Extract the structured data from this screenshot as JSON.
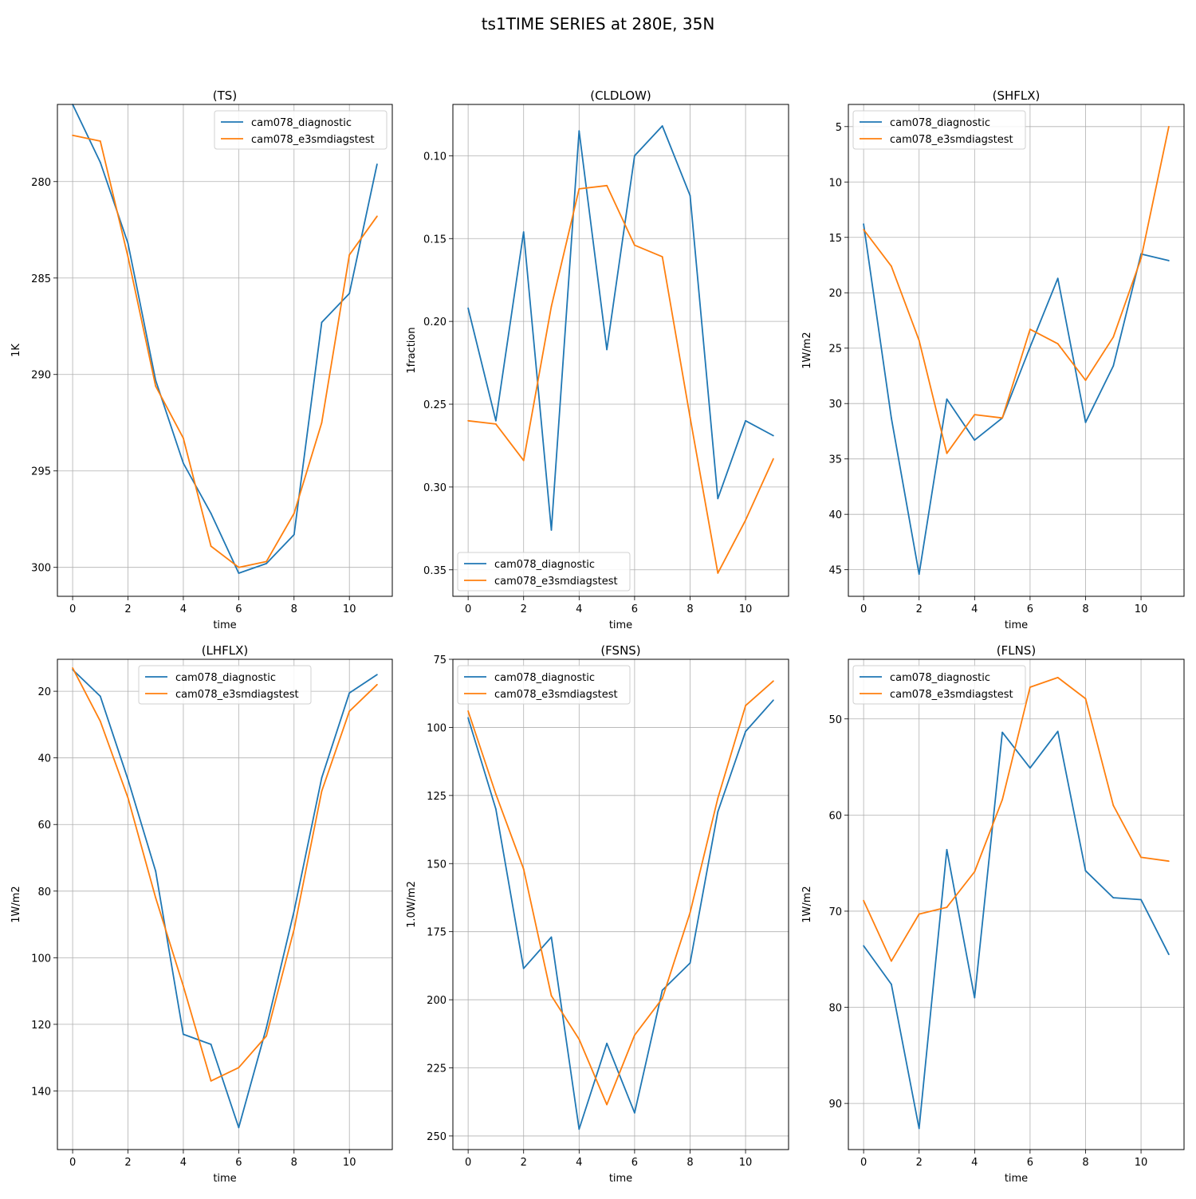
{
  "figure": {
    "title": "ts1TIME SERIES at 280E, 35N"
  },
  "colors": {
    "series_1": "#1f77b4",
    "series_2": "#ff7f0e",
    "grid": "#b0b0b0"
  },
  "chart_data": [
    {
      "type": "line",
      "title": "(TS)",
      "xlabel": "time",
      "ylabel": "1K",
      "xlim": [
        -0.55,
        11.55
      ],
      "ylim": [
        276.0,
        301.5
      ],
      "y_inverted": true,
      "xticks": [
        0,
        2,
        4,
        6,
        8,
        10
      ],
      "yticks": [
        275,
        280,
        285,
        290,
        295,
        300
      ],
      "grid": true,
      "legend": "upper right",
      "x": [
        0,
        1,
        2,
        3,
        4,
        5,
        6,
        7,
        8,
        9,
        10,
        11
      ],
      "series": [
        {
          "name": "cam078_diagnostic",
          "values": [
            276.0,
            279.0,
            283.2,
            290.3,
            294.6,
            297.2,
            300.3,
            299.8,
            298.3,
            287.3,
            285.8,
            279.1
          ]
        },
        {
          "name": "cam078_e3smdiagstest",
          "values": [
            277.6,
            277.9,
            283.9,
            290.6,
            293.3,
            298.9,
            300.0,
            299.7,
            297.2,
            292.5,
            283.8,
            281.8
          ]
        }
      ]
    },
    {
      "type": "line",
      "title": "(CLDLOW)",
      "xlabel": "time",
      "ylabel": "1fraction",
      "xlim": [
        -0.55,
        11.55
      ],
      "ylim": [
        0.069,
        0.366
      ],
      "y_inverted": true,
      "xticks": [
        0,
        2,
        4,
        6,
        8,
        10
      ],
      "yticks": [
        0.1,
        0.15,
        0.2,
        0.25,
        0.3,
        0.35
      ],
      "grid": true,
      "legend": "lower left",
      "x": [
        0,
        1,
        2,
        3,
        4,
        5,
        6,
        7,
        8,
        9,
        10,
        11
      ],
      "series": [
        {
          "name": "cam078_diagnostic",
          "values": [
            0.192,
            0.26,
            0.146,
            0.326,
            0.085,
            0.217,
            0.1,
            0.082,
            0.124,
            0.307,
            0.26,
            0.269
          ]
        },
        {
          "name": "cam078_e3smdiagstest",
          "values": [
            0.26,
            0.262,
            0.284,
            0.191,
            0.12,
            0.118,
            0.154,
            0.161,
            0.258,
            0.352,
            0.32,
            0.283
          ]
        }
      ]
    },
    {
      "type": "line",
      "title": "(SHFLX)",
      "xlabel": "time",
      "ylabel": "1W/m2",
      "xlim": [
        -0.55,
        11.55
      ],
      "ylim": [
        3.0,
        47.4
      ],
      "y_inverted": true,
      "xticks": [
        0,
        2,
        4,
        6,
        8,
        10
      ],
      "yticks": [
        5,
        10,
        15,
        20,
        25,
        30,
        35,
        40,
        45
      ],
      "grid": true,
      "legend": "upper left",
      "x": [
        0,
        1,
        2,
        3,
        4,
        5,
        6,
        7,
        8,
        9,
        10,
        11
      ],
      "series": [
        {
          "name": "cam078_diagnostic",
          "values": [
            13.8,
            31.3,
            45.4,
            29.6,
            33.3,
            31.3,
            24.9,
            18.7,
            31.7,
            26.6,
            16.5,
            17.1
          ]
        },
        {
          "name": "cam078_e3smdiagstest",
          "values": [
            14.3,
            17.6,
            24.3,
            34.5,
            31.0,
            31.3,
            23.3,
            24.6,
            27.9,
            24.0,
            16.9,
            5.0
          ]
        }
      ]
    },
    {
      "type": "line",
      "title": "(LHFLX)",
      "xlabel": "time",
      "ylabel": "1W/m2",
      "xlim": [
        -0.55,
        11.55
      ],
      "ylim": [
        10.4,
        157.6
      ],
      "y_inverted": true,
      "xticks": [
        0,
        2,
        4,
        6,
        8,
        10
      ],
      "yticks": [
        20,
        40,
        60,
        80,
        100,
        120,
        140
      ],
      "grid": true,
      "legend": "upper center",
      "x": [
        0,
        1,
        2,
        3,
        4,
        5,
        6,
        7,
        8,
        9,
        10,
        11
      ],
      "series": [
        {
          "name": "cam078_diagnostic",
          "values": [
            13.5,
            21.5,
            46.5,
            74.0,
            123.0,
            126.0,
            151.0,
            121.0,
            86.0,
            46.0,
            20.5,
            15.0
          ]
        },
        {
          "name": "cam078_e3smdiagstest",
          "values": [
            13.0,
            29.0,
            52.0,
            82.0,
            108.5,
            137.0,
            133.0,
            123.5,
            91.5,
            50.0,
            26.0,
            18.0
          ]
        }
      ]
    },
    {
      "type": "line",
      "title": "(FSNS)",
      "xlabel": "time",
      "ylabel": "1.0W/m2",
      "xlim": [
        -0.55,
        11.55
      ],
      "ylim": [
        75.0,
        255.0
      ],
      "y_inverted": true,
      "xticks": [
        0,
        2,
        4,
        6,
        8,
        10
      ],
      "yticks": [
        75,
        100,
        125,
        150,
        175,
        200,
        225,
        250
      ],
      "grid": true,
      "legend": "upper left",
      "x": [
        0,
        1,
        2,
        3,
        4,
        5,
        6,
        7,
        8,
        9,
        10,
        11
      ],
      "series": [
        {
          "name": "cam078_diagnostic",
          "values": [
            96.5,
            130.0,
            188.5,
            177.0,
            247.5,
            216.0,
            241.5,
            196.5,
            186.5,
            131.0,
            101.5,
            90.0
          ]
        },
        {
          "name": "cam078_e3smdiagstest",
          "values": [
            94.0,
            124.5,
            152.0,
            198.5,
            214.5,
            238.5,
            213.0,
            199.5,
            168.0,
            126.0,
            92.0,
            83.0
          ]
        }
      ]
    },
    {
      "type": "line",
      "title": "(FLNS)",
      "xlabel": "time",
      "ylabel": "1W/m2",
      "xlim": [
        -0.55,
        11.55
      ],
      "ylim": [
        43.8,
        94.8
      ],
      "y_inverted": true,
      "xticks": [
        0,
        2,
        4,
        6,
        8,
        10
      ],
      "yticks": [
        50,
        60,
        70,
        80,
        90
      ],
      "grid": true,
      "legend": "upper left",
      "x": [
        0,
        1,
        2,
        3,
        4,
        5,
        6,
        7,
        8,
        9,
        10,
        11
      ],
      "series": [
        {
          "name": "cam078_diagnostic",
          "values": [
            73.6,
            77.6,
            92.6,
            63.6,
            79.0,
            51.4,
            55.1,
            51.3,
            65.8,
            68.6,
            68.8,
            74.5
          ]
        },
        {
          "name": "cam078_e3smdiagstest",
          "values": [
            68.9,
            75.2,
            70.3,
            69.6,
            65.9,
            58.4,
            46.7,
            45.7,
            47.9,
            59.0,
            64.4,
            64.8
          ]
        }
      ]
    }
  ]
}
